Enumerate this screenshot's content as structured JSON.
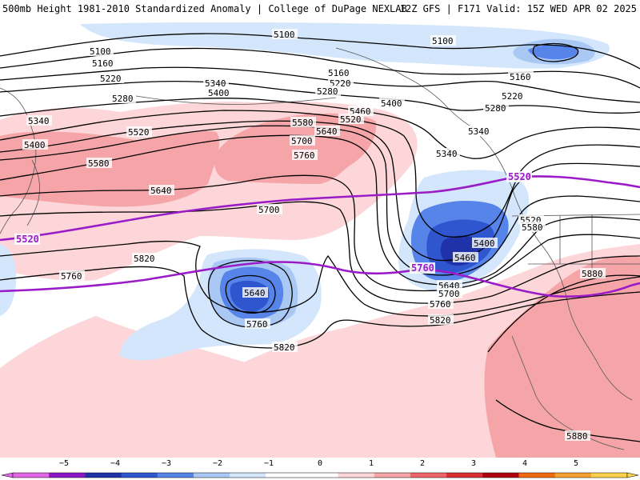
{
  "header": {
    "title_left": "500mb Height 1981-2010 Standardized Anomaly | College of DuPage NEXLAB",
    "title_right": "12Z GFS | F171 Valid: 15Z WED APR 02 2025"
  },
  "colors": {
    "background": "#ffffff",
    "contour": "#000000",
    "highlight_contour": "#9a1bc8",
    "coastline": "#555555"
  },
  "contour_labels": [
    {
      "text": "5100",
      "kind": "height"
    },
    {
      "text": "5100",
      "kind": "height"
    },
    {
      "text": "5100",
      "kind": "height"
    },
    {
      "text": "5160",
      "kind": "height"
    },
    {
      "text": "5160",
      "kind": "height"
    },
    {
      "text": "5160",
      "kind": "height"
    },
    {
      "text": "5220",
      "kind": "height"
    },
    {
      "text": "5220",
      "kind": "height"
    },
    {
      "text": "5220",
      "kind": "height"
    },
    {
      "text": "5280",
      "kind": "height"
    },
    {
      "text": "5280",
      "kind": "height"
    },
    {
      "text": "5280",
      "kind": "height"
    },
    {
      "text": "5340",
      "kind": "height"
    },
    {
      "text": "5340",
      "kind": "height"
    },
    {
      "text": "5340",
      "kind": "height"
    },
    {
      "text": "5340",
      "kind": "height"
    },
    {
      "text": "5400",
      "kind": "height"
    },
    {
      "text": "5400",
      "kind": "height"
    },
    {
      "text": "5400",
      "kind": "height"
    },
    {
      "text": "5400",
      "kind": "height"
    },
    {
      "text": "5460",
      "kind": "height"
    },
    {
      "text": "5460",
      "kind": "height"
    },
    {
      "text": "5520",
      "kind": "height"
    },
    {
      "text": "5520",
      "kind": "height"
    },
    {
      "text": "5520",
      "kind": "height"
    },
    {
      "text": "5520",
      "kind": "highlight"
    },
    {
      "text": "5520",
      "kind": "highlight"
    },
    {
      "text": "5580",
      "kind": "height"
    },
    {
      "text": "5580",
      "kind": "height"
    },
    {
      "text": "5580",
      "kind": "height"
    },
    {
      "text": "5640",
      "kind": "height"
    },
    {
      "text": "5640",
      "kind": "height"
    },
    {
      "text": "5640",
      "kind": "height"
    },
    {
      "text": "5640",
      "kind": "height"
    },
    {
      "text": "5700",
      "kind": "height"
    },
    {
      "text": "5700",
      "kind": "height"
    },
    {
      "text": "5700",
      "kind": "height"
    },
    {
      "text": "5760",
      "kind": "height"
    },
    {
      "text": "5760",
      "kind": "height"
    },
    {
      "text": "5760",
      "kind": "height"
    },
    {
      "text": "5760",
      "kind": "height"
    },
    {
      "text": "5760",
      "kind": "highlight"
    },
    {
      "text": "5820",
      "kind": "height"
    },
    {
      "text": "5820",
      "kind": "height"
    },
    {
      "text": "5820",
      "kind": "height"
    },
    {
      "text": "5880",
      "kind": "height"
    },
    {
      "text": "5880",
      "kind": "height"
    }
  ],
  "colorbar": {
    "ticks": [
      "−5",
      "−4",
      "−3",
      "−2",
      "−1",
      "0",
      "1",
      "2",
      "3",
      "4",
      "5"
    ],
    "bins": [
      "#e066e6",
      "#8d17c6",
      "#1f32a8",
      "#2f55cf",
      "#5684e8",
      "#a9c8f4",
      "#d3e6fb",
      "#ffffff",
      "#ffffff",
      "#fcd6d8",
      "#f5a5a8",
      "#ef6469",
      "#d82f33",
      "#b00010",
      "#f06a10",
      "#f7a030",
      "#fdd24a"
    ]
  }
}
